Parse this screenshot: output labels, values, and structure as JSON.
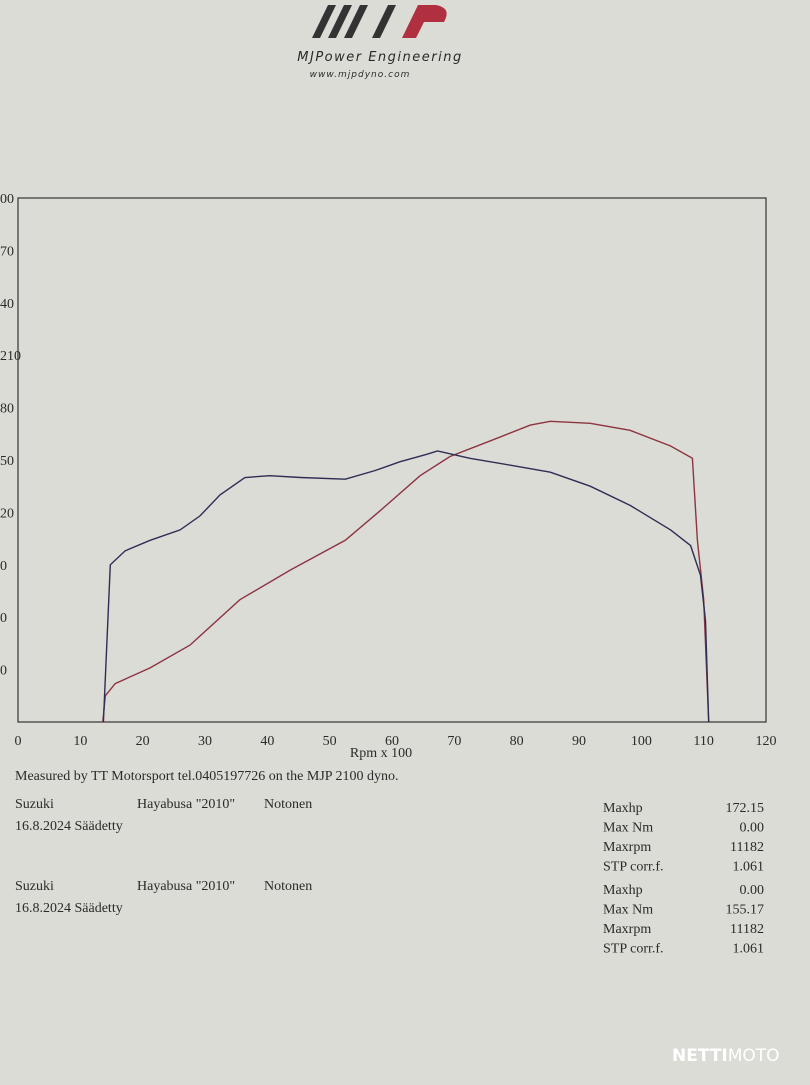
{
  "header": {
    "brand": "MJPower Engineering",
    "url": "www.mjpdyno.com"
  },
  "chart_data": {
    "type": "line",
    "x_label": "Rpm x 100",
    "xlim": [
      0,
      120
    ],
    "xticks": [
      0,
      10,
      20,
      30,
      40,
      50,
      60,
      70,
      80,
      90,
      100,
      110,
      120
    ],
    "ylim": [
      0,
      300
    ],
    "yticks": [
      {
        "value": 300,
        "label": "00"
      },
      {
        "value": 270,
        "label": "70"
      },
      {
        "value": 240,
        "label": "40"
      },
      210,
      {
        "value": 180,
        "label": "80"
      },
      {
        "value": 150,
        "label": "50"
      },
      {
        "value": 120,
        "label": "20"
      },
      {
        "value": 90,
        "label": "0"
      },
      {
        "value": 60,
        "label": "0"
      },
      {
        "value": 30,
        "label": "0"
      }
    ],
    "grid": false,
    "series": [
      {
        "color": "#8c3440",
        "x": [
          13.6,
          14,
          15.6,
          21.2,
          27.6,
          35.6,
          43.7,
          52.5,
          58.1,
          64.5,
          69.3,
          75.8,
          82.2,
          85.4,
          91.8,
          98.2,
          104.7,
          108.2,
          109,
          110,
          110.8
        ],
        "values": [
          0,
          15,
          22,
          31,
          44,
          70,
          87,
          104,
          121,
          141,
          152,
          161,
          170,
          172.15,
          171,
          167,
          158,
          151,
          104,
          70,
          0
        ]
      },
      {
        "color": "#2e2d55",
        "x": [
          13.7,
          14.8,
          17.2,
          21.2,
          26,
          29.2,
          32.4,
          36.4,
          40.4,
          45.3,
          52.5,
          57.3,
          61.3,
          65.3,
          67.3,
          72.5,
          79,
          85.4,
          91.8,
          98.2,
          104.7,
          107.9,
          109.5,
          110.3,
          110.8
        ],
        "values": [
          0,
          90,
          98,
          104,
          110,
          118,
          130,
          140,
          141,
          140,
          139,
          144,
          149,
          153,
          155.17,
          151,
          147,
          143,
          135,
          124,
          110,
          101,
          84,
          58,
          0
        ]
      }
    ]
  },
  "measured_by": "Measured by TT Motorsport tel.0405197726 on the MJP 2100 dyno.",
  "runs": [
    {
      "make": "Suzuki",
      "model": "Hayabusa \"2010\"",
      "owner": "Notonen",
      "date": "16.8.2024 Säädetty",
      "stats": [
        [
          "Maxhp",
          "172.15"
        ],
        [
          "Max Nm",
          "0.00"
        ],
        [
          "Maxrpm",
          "11182"
        ],
        [
          "STP corr.f.",
          "1.061"
        ]
      ]
    },
    {
      "make": "Suzuki",
      "model": "Hayabusa \"2010\"",
      "owner": "Notonen",
      "date": "16.8.2024 Säädetty",
      "stats": [
        [
          "Maxhp",
          "0.00"
        ],
        [
          "Max Nm",
          "155.17"
        ],
        [
          "Maxrpm",
          "11182"
        ],
        [
          "STP corr.f.",
          "1.061"
        ]
      ]
    }
  ],
  "watermark": {
    "a": "NETTI",
    "b": "MOTO"
  }
}
